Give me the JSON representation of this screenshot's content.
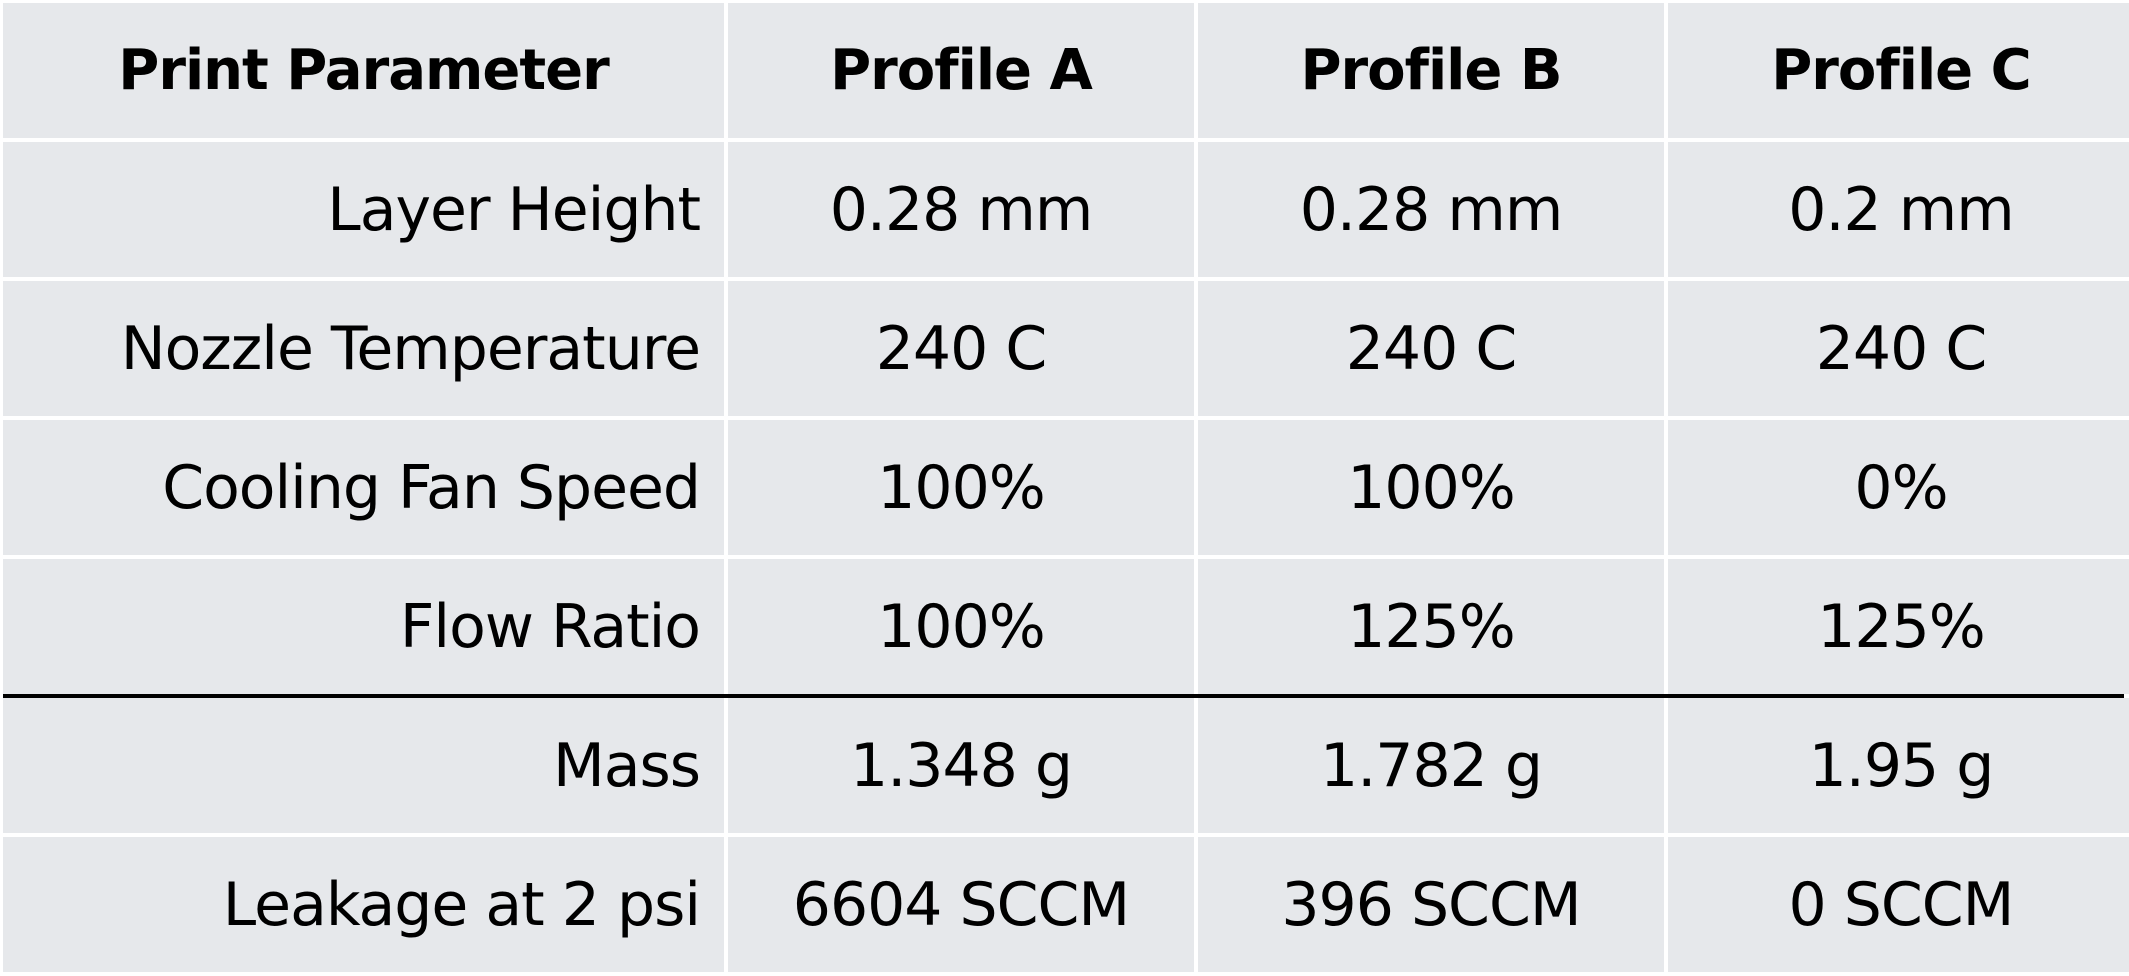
{
  "table": {
    "header": [
      "Print Parameter",
      "Profile A",
      "Profile B",
      "Profile C"
    ],
    "rows": [
      [
        "Layer Height",
        "0.28 mm",
        "0.28 mm",
        "0.2 mm"
      ],
      [
        "Nozzle Temperature",
        "240 C",
        "240 C",
        "240 C"
      ],
      [
        "Cooling Fan Speed",
        "100%",
        "100%",
        "0%"
      ],
      [
        "Flow Ratio",
        "100%",
        "125%",
        "125%"
      ],
      [
        "Mass",
        "1.348 g",
        "1.782 g",
        "1.95 g"
      ],
      [
        "Leakage at 2 psi",
        "6604 SCCM",
        "396 SCCM",
        "0 SCCM"
      ]
    ]
  }
}
